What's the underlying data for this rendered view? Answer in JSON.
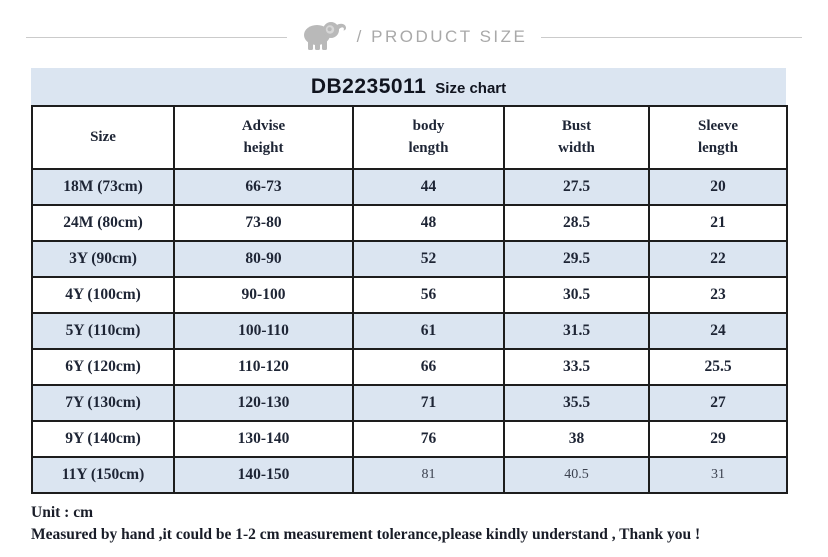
{
  "page_header": {
    "icon": "elephant-icon",
    "label": "/ PRODUCT SIZE"
  },
  "title_bar": {
    "product_code": "DB2235011",
    "label": "Size chart"
  },
  "table": {
    "header_display": [
      "Size",
      "Advise\nheight",
      "body\nlength",
      "Bust\nwidth",
      "Sleeve\nlength"
    ]
  },
  "chart_data": {
    "type": "table",
    "title": "DB2235011 Size chart",
    "unit": "cm",
    "columns": [
      "Size",
      "Advise height",
      "body length",
      "Bust width",
      "Sleeve length"
    ],
    "rows": [
      [
        "18M (73cm)",
        "66-73",
        "44",
        "27.5",
        "20"
      ],
      [
        "24M (80cm)",
        "73-80",
        "48",
        "28.5",
        "21"
      ],
      [
        "3Y (90cm)",
        "80-90",
        "52",
        "29.5",
        "22"
      ],
      [
        "4Y (100cm)",
        "90-100",
        "56",
        "30.5",
        "23"
      ],
      [
        "5Y (110cm)",
        "100-110",
        "61",
        "31.5",
        "24"
      ],
      [
        "6Y (120cm)",
        "110-120",
        "66",
        "33.5",
        "25.5"
      ],
      [
        "7Y (130cm)",
        "120-130",
        "71",
        "35.5",
        "27"
      ],
      [
        "9Y (140cm)",
        "130-140",
        "76",
        "38",
        "29"
      ],
      [
        "11Y (150cm)",
        "140-150",
        "81",
        "40.5",
        "31"
      ]
    ],
    "layout": {
      "striped": true,
      "stripe_color": "#dbe5f1",
      "border_color": "#1d1d1d"
    }
  },
  "notes": {
    "unit_line": "Unit : cm",
    "tolerance_line": "Measured by hand ,it could be 1-2 cm measurement tolerance,please kindly understand , Thank you !"
  },
  "colors": {
    "accent_row_background": "#dbe5f1",
    "table_border": "#1d1d1d",
    "table_text": "#1e2535",
    "header_muted_gray": "#a9a9a9"
  }
}
